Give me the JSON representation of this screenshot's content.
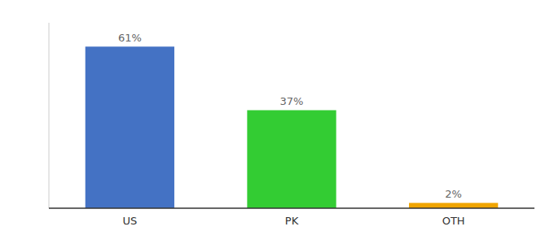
{
  "chart_data": {
    "type": "bar",
    "categories": [
      "US",
      "PK",
      "OTH"
    ],
    "values": [
      61,
      37,
      2
    ],
    "value_labels": [
      "61%",
      "37%",
      "2%"
    ],
    "colors": [
      "#4472c4",
      "#33cc33",
      "#f0a500"
    ],
    "ylim": [
      0,
      70
    ],
    "data_labels": true,
    "tick_labels": "x",
    "grid": false
  }
}
